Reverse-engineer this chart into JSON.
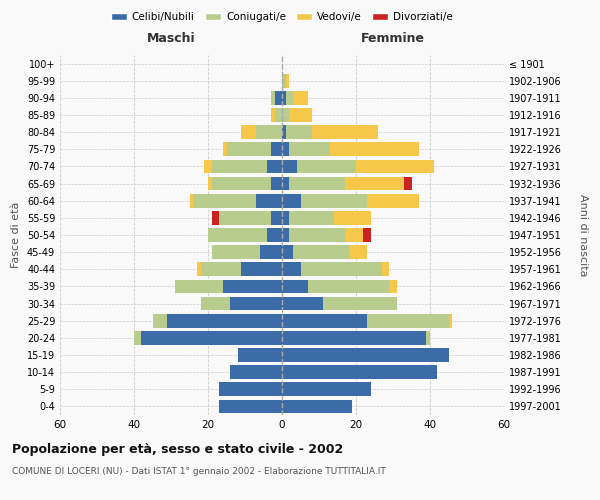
{
  "age_groups": [
    "0-4",
    "5-9",
    "10-14",
    "15-19",
    "20-24",
    "25-29",
    "30-34",
    "35-39",
    "40-44",
    "45-49",
    "50-54",
    "55-59",
    "60-64",
    "65-69",
    "70-74",
    "75-79",
    "80-84",
    "85-89",
    "90-94",
    "95-99",
    "100+"
  ],
  "birth_years": [
    "1997-2001",
    "1992-1996",
    "1987-1991",
    "1982-1986",
    "1977-1981",
    "1972-1976",
    "1967-1971",
    "1962-1966",
    "1957-1961",
    "1952-1956",
    "1947-1951",
    "1942-1946",
    "1937-1941",
    "1932-1936",
    "1927-1931",
    "1922-1926",
    "1917-1921",
    "1912-1916",
    "1907-1911",
    "1902-1906",
    "≤ 1901"
  ],
  "male": {
    "celibi": [
      17,
      17,
      14,
      12,
      38,
      31,
      14,
      16,
      11,
      6,
      4,
      3,
      7,
      3,
      4,
      3,
      0,
      0,
      2,
      0,
      0
    ],
    "coniugati": [
      0,
      0,
      0,
      0,
      2,
      4,
      8,
      13,
      11,
      13,
      16,
      14,
      17,
      16,
      15,
      12,
      7,
      2,
      1,
      0,
      0
    ],
    "vedovi": [
      0,
      0,
      0,
      0,
      0,
      0,
      0,
      0,
      1,
      0,
      0,
      0,
      1,
      1,
      2,
      1,
      4,
      1,
      0,
      0,
      0
    ],
    "divorziati": [
      0,
      0,
      0,
      0,
      0,
      0,
      0,
      0,
      0,
      0,
      0,
      2,
      0,
      0,
      0,
      0,
      0,
      0,
      0,
      0,
      0
    ]
  },
  "female": {
    "nubili": [
      19,
      24,
      42,
      45,
      39,
      23,
      11,
      7,
      5,
      3,
      2,
      2,
      5,
      2,
      4,
      2,
      1,
      0,
      1,
      0,
      0
    ],
    "coniugate": [
      0,
      0,
      0,
      0,
      1,
      22,
      20,
      22,
      22,
      15,
      15,
      12,
      18,
      15,
      16,
      11,
      7,
      2,
      2,
      1,
      0
    ],
    "vedove": [
      0,
      0,
      0,
      0,
      0,
      1,
      0,
      2,
      2,
      5,
      5,
      10,
      14,
      16,
      21,
      24,
      18,
      6,
      4,
      1,
      0
    ],
    "divorziate": [
      0,
      0,
      0,
      0,
      0,
      0,
      0,
      0,
      0,
      0,
      2,
      0,
      0,
      2,
      0,
      0,
      0,
      0,
      0,
      0,
      0
    ]
  },
  "colors": {
    "celibi": "#3b6ca8",
    "coniugati": "#b8cc8e",
    "vedovi": "#f5c84a",
    "divorziati": "#cc2222"
  },
  "xlim": 60,
  "title": "Popolazione per età, sesso e stato civile - 2002",
  "subtitle": "COMUNE DI LOCERI (NU) - Dati ISTAT 1° gennaio 2002 - Elaborazione TUTTITALIA.IT",
  "ylabel_left": "Fasce di età",
  "ylabel_right": "Anni di nascita",
  "xlabel_left": "Maschi",
  "xlabel_right": "Femmine",
  "bg_color": "#f9f9f9",
  "grid_color": "#cccccc"
}
